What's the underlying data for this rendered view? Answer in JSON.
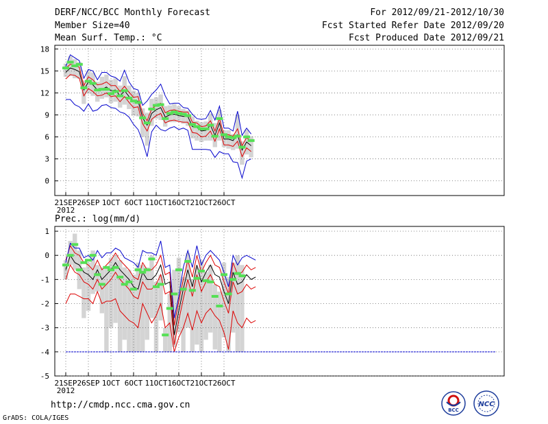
{
  "header": {
    "title": "DERF/NCC/BCC Monthly Forecast",
    "member_size": "Member Size=40",
    "variable": "Mean Surf. Temp.: °C",
    "period": "For 2012/09/21-2012/10/30",
    "started": "Fcst Started Refer Date 2012/09/20",
    "produced": "Fcst Produced Date 2012/09/21"
  },
  "footer": {
    "url": "http://cmdp.ncc.cma.gov.cn",
    "grads": "GrADS: COLA/IGES",
    "logo_left_text": "BCC",
    "logo_right_text": "NCC"
  },
  "colors": {
    "box": "#d4d4d4",
    "mean": "#000000",
    "band": "#dd0000",
    "envelope": "#0000cc",
    "obs": "#55e055",
    "axis": "#000000",
    "grid": "#666666"
  },
  "chart_data": [
    {
      "type": "line",
      "title": "Mean Surf. Temp.: °C",
      "ylabel": "°C",
      "ylim": [
        -2,
        18.5
      ],
      "yticks": [
        0,
        3,
        6,
        9,
        12,
        15,
        18
      ],
      "x_tick_labels": [
        "21SEP",
        "26SEP",
        "1OCT",
        "6OCT",
        "11OCT",
        "16OCT",
        "21OCT",
        "26OCT"
      ],
      "x_tick_days": [
        0,
        5,
        10,
        15,
        20,
        25,
        30,
        35
      ],
      "year_label": "2012",
      "days": 39,
      "series": [
        {
          "name": "ensemble-mean",
          "values": [
            14.8,
            15.4,
            15.2,
            14.9,
            12.4,
            13.5,
            13.1,
            12.4,
            12.5,
            12.8,
            12.3,
            12.4,
            11.6,
            12.3,
            11.5,
            10.8,
            10.9,
            8.6,
            7.6,
            9.2,
            9.7,
            10.0,
            8.7,
            9.0,
            9.1,
            8.9,
            8.8,
            8.8,
            7.4,
            7.3,
            6.8,
            6.9,
            7.6,
            6.2,
            7.9,
            5.7,
            5.7,
            5.5,
            6.3,
            4.2,
            5.3,
            4.8
          ]
        },
        {
          "name": "upper-band",
          "values": [
            15.4,
            15.9,
            15.8,
            15.5,
            13.0,
            14.2,
            13.8,
            13.1,
            13.2,
            13.5,
            13.0,
            13.0,
            12.2,
            12.9,
            12.1,
            11.4,
            11.5,
            9.2,
            8.2,
            9.8,
            10.3,
            10.6,
            9.3,
            9.6,
            9.7,
            9.5,
            9.4,
            9.4,
            8.0,
            7.9,
            7.4,
            7.5,
            8.2,
            6.8,
            8.5,
            6.3,
            6.3,
            6.1,
            7.1,
            4.8,
            5.9,
            5.4
          ]
        },
        {
          "name": "lower-band",
          "values": [
            13.9,
            14.5,
            14.4,
            14.0,
            11.6,
            12.6,
            12.2,
            11.6,
            11.7,
            12.0,
            11.5,
            11.6,
            10.8,
            11.5,
            10.7,
            10.0,
            10.1,
            7.8,
            6.8,
            8.4,
            8.9,
            9.2,
            7.9,
            8.2,
            8.3,
            8.1,
            8.0,
            8.0,
            6.6,
            6.5,
            6.0,
            6.1,
            6.8,
            5.4,
            7.1,
            4.9,
            4.9,
            4.7,
            5.4,
            3.3,
            4.5,
            4.0
          ]
        },
        {
          "name": "max-envelope",
          "values": [
            15.6,
            17.2,
            16.8,
            16.4,
            14.0,
            15.2,
            15.0,
            13.8,
            14.8,
            14.8,
            14.3,
            14.1,
            13.6,
            15.1,
            13.5,
            12.6,
            12.4,
            10.3,
            10.9,
            11.8,
            12.4,
            13.2,
            11.6,
            10.5,
            10.6,
            10.6,
            10.0,
            9.9,
            9.1,
            8.5,
            8.4,
            8.5,
            9.6,
            8.3,
            10.2,
            7.2,
            7.2,
            6.8,
            9.5,
            6.2,
            7.2,
            6.4
          ]
        },
        {
          "name": "min-envelope",
          "values": [
            11.1,
            11.1,
            10.4,
            10.1,
            9.5,
            10.5,
            9.5,
            9.7,
            10.3,
            10.4,
            10.0,
            9.9,
            9.4,
            9.2,
            8.7,
            7.7,
            7.0,
            5.4,
            3.3,
            6.7,
            7.6,
            7.0,
            6.8,
            7.2,
            7.4,
            7.0,
            7.2,
            6.9,
            4.3,
            4.3,
            4.3,
            4.3,
            4.2,
            3.2,
            4.0,
            3.7,
            3.7,
            2.6,
            2.5,
            0.4,
            2.7,
            3.0
          ]
        },
        {
          "name": "observed",
          "values": [
            15.4,
            16.2,
            15.7,
            15.9,
            12.7,
            13.6,
            13.3,
            12.4,
            12.5,
            12.5,
            11.9,
            12.2,
            11.6,
            12.3,
            11.3,
            10.9,
            10.7,
            8.6,
            7.9,
            9.8,
            10.3,
            10.4,
            8.5,
            9.2,
            9.4,
            9.2,
            9.1,
            8.9,
            7.7,
            7.4,
            7.1,
            7.1,
            7.6,
            6.1,
            8.5,
            6.3,
            6.0,
            5.9,
            6.1,
            4.6,
            6.0,
            5.5
          ]
        }
      ],
      "box_ranges": [
        [
          14.2,
          16.0
        ],
        [
          14.3,
          17.0
        ],
        [
          14.0,
          16.6
        ],
        [
          13.9,
          16.2
        ],
        [
          10.5,
          13.7
        ],
        [
          11.9,
          15.0
        ],
        [
          11.6,
          14.8
        ],
        [
          10.8,
          13.5
        ],
        [
          11.2,
          14.2
        ],
        [
          11.4,
          14.5
        ],
        [
          10.6,
          13.8
        ],
        [
          10.8,
          14.0
        ],
        [
          10.0,
          13.0
        ],
        [
          10.4,
          14.3
        ],
        [
          9.8,
          13.0
        ],
        [
          8.9,
          12.3
        ],
        [
          8.8,
          12.0
        ],
        [
          6.0,
          9.9
        ],
        [
          4.8,
          9.3
        ],
        [
          7.5,
          11.2
        ],
        [
          8.5,
          11.4
        ],
        [
          8.3,
          11.8
        ],
        [
          7.4,
          10.2
        ],
        [
          8.0,
          10.3
        ],
        [
          8.0,
          10.5
        ],
        [
          8.1,
          10.2
        ],
        [
          7.8,
          9.8
        ],
        [
          7.5,
          9.6
        ],
        [
          5.8,
          8.8
        ],
        [
          5.5,
          8.2
        ],
        [
          5.3,
          8.0
        ],
        [
          5.5,
          8.1
        ],
        [
          5.5,
          9.2
        ],
        [
          4.6,
          7.9
        ],
        [
          5.5,
          9.7
        ],
        [
          4.6,
          6.9
        ],
        [
          4.4,
          6.9
        ],
        [
          4.2,
          6.4
        ],
        [
          4.4,
          9.0
        ],
        [
          2.2,
          5.4
        ],
        [
          3.6,
          7.0
        ],
        [
          3.2,
          6.1
        ]
      ]
    },
    {
      "type": "line",
      "title": "Prec.: log(mm/d)",
      "ylabel": "log(mm/d)",
      "ylim": [
        -5,
        1.2
      ],
      "yticks": [
        -5,
        -4,
        -3,
        -2,
        -1,
        0,
        1
      ],
      "x_tick_labels": [
        "21SEP",
        "26SEP",
        "1OCT",
        "6OCT",
        "11OCT",
        "16OCT",
        "21OCT",
        "26OCT"
      ],
      "x_tick_days": [
        0,
        5,
        10,
        15,
        20,
        25,
        30,
        35
      ],
      "year_label": "2012",
      "days": 39,
      "series": [
        {
          "name": "ensemble-mean",
          "values": [
            -0.6,
            0.0,
            -0.3,
            -0.4,
            -0.7,
            -0.8,
            -1.0,
            -0.6,
            -1.0,
            -0.8,
            -0.6,
            -0.3,
            -0.6,
            -0.8,
            -1.0,
            -1.3,
            -1.4,
            -0.7,
            -1.0,
            -1.0,
            -0.8,
            -0.4,
            -1.2,
            -1.1,
            -3.3,
            -2.3,
            -1.4,
            -0.6,
            -1.3,
            -0.4,
            -1.1,
            -0.7,
            -0.4,
            -0.8,
            -0.9,
            -1.5,
            -2.0,
            -0.7,
            -1.2,
            -1.1,
            -0.8,
            -1.0,
            -0.9
          ]
        },
        {
          "name": "upper-band",
          "values": [
            -0.2,
            0.4,
            0.1,
            0.0,
            -0.3,
            -0.4,
            -0.6,
            -0.2,
            -0.6,
            -0.4,
            -0.2,
            0.1,
            -0.2,
            -0.4,
            -0.6,
            -0.9,
            -1.0,
            -0.3,
            -0.6,
            -0.6,
            -0.4,
            0.0,
            -0.8,
            -0.7,
            -2.9,
            -1.9,
            -1.0,
            -0.2,
            -0.9,
            0.0,
            -0.7,
            -0.3,
            0.0,
            -0.4,
            -0.5,
            -1.1,
            -1.6,
            -0.3,
            -0.8,
            -0.7,
            -0.4,
            -0.6,
            -0.5
          ]
        },
        {
          "name": "lower-band",
          "values": [
            -1.0,
            -0.4,
            -0.7,
            -0.8,
            -1.1,
            -1.2,
            -1.4,
            -1.0,
            -1.4,
            -1.2,
            -1.0,
            -0.7,
            -1.0,
            -1.2,
            -1.4,
            -1.7,
            -1.8,
            -1.1,
            -1.4,
            -1.4,
            -1.2,
            -0.8,
            -1.6,
            -1.5,
            -3.7,
            -2.7,
            -1.8,
            -1.0,
            -1.7,
            -0.8,
            -1.5,
            -1.1,
            -0.8,
            -1.2,
            -1.3,
            -1.9,
            -2.4,
            -1.1,
            -1.6,
            -1.5,
            -1.2,
            -1.4,
            -1.3
          ]
        },
        {
          "name": "upper-line",
          "values": [
            -0.3,
            0.5,
            0.3,
            0.3,
            -0.1,
            0.0,
            -0.2,
            0.2,
            -0.1,
            0.1,
            0.1,
            0.3,
            0.2,
            -0.1,
            -0.2,
            -0.3,
            -0.5,
            0.2,
            0.1,
            0.1,
            0.0,
            0.6,
            -0.5,
            -0.4,
            -2.6,
            -1.7,
            -0.5,
            0.2,
            -0.5,
            0.4,
            -0.4,
            0.0,
            0.2,
            0.0,
            -0.2,
            -0.7,
            -1.3,
            0.0,
            -0.4,
            -0.1,
            0.0,
            -0.1,
            -0.2
          ]
        },
        {
          "name": "lower-line",
          "values": [
            -2.0,
            -1.6,
            -1.6,
            -1.7,
            -1.8,
            -1.8,
            -2.0,
            -1.5,
            -2.0,
            -1.9,
            -1.9,
            -1.8,
            -2.3,
            -2.5,
            -2.7,
            -2.8,
            -3.0,
            -2.0,
            -2.4,
            -2.8,
            -2.5,
            -2.0,
            -3.0,
            -2.8,
            -4.0,
            -3.4,
            -3.0,
            -2.4,
            -3.1,
            -2.3,
            -2.8,
            -2.4,
            -2.2,
            -2.5,
            -2.7,
            -3.2,
            -3.9,
            -2.3,
            -2.8,
            -3.0,
            -2.6,
            -2.8,
            -2.7
          ]
        },
        {
          "name": "observed",
          "values": [
            -0.4,
            0.0,
            0.45,
            -0.6,
            -0.3,
            -0.2,
            0.0,
            -0.8,
            -1.2,
            -0.5,
            -0.6,
            -0.5,
            -0.9,
            -1.2,
            -1.1,
            -1.4,
            -0.6,
            -0.7,
            -0.6,
            -0.15,
            -1.3,
            -1.2,
            -3.3,
            -2.2,
            -1.6,
            -0.6,
            -1.4,
            -0.25,
            -1.45,
            -0.95,
            -0.65,
            -1.05,
            -1.1,
            -1.7,
            -2.1,
            -0.8,
            -1.6,
            -1.0,
            -0.75,
            -0.85
          ]
        }
      ],
      "min_envelope": -4,
      "box_ranges": [
        [
          -1.0,
          -0.2
        ],
        [
          -0.4,
          0.6
        ],
        [
          -0.6,
          0.9
        ],
        [
          -1.4,
          0.2
        ],
        [
          -2.6,
          -0.5
        ],
        [
          -2.3,
          -0.3
        ],
        [
          -1.6,
          0.2
        ],
        [
          -1.5,
          -0.4
        ],
        [
          -2.4,
          -0.5
        ],
        [
          -4.0,
          -0.5
        ],
        [
          -3.0,
          -0.1
        ],
        [
          -2.8,
          0.0
        ],
        [
          -4.0,
          -0.2
        ],
        [
          -3.5,
          -0.5
        ],
        [
          -4.0,
          -0.6
        ],
        [
          -4.0,
          -0.8
        ],
        [
          -4.0,
          -0.3
        ],
        [
          -4.0,
          -0.4
        ],
        [
          -3.5,
          -0.5
        ],
        [
          -2.6,
          0.0
        ],
        [
          -4.0,
          -1.1
        ],
        [
          -2.7,
          -0.8
        ],
        [
          -4.0,
          -3.0
        ],
        [
          -4.0,
          -1.6
        ],
        [
          -3.8,
          -0.6
        ],
        [
          -3.2,
          -0.1
        ],
        [
          -4.0,
          -0.9
        ],
        [
          -3.0,
          0.1
        ],
        [
          -4.0,
          -1.0
        ],
        [
          -3.7,
          -0.5
        ],
        [
          -4.0,
          -0.2
        ],
        [
          -3.5,
          -0.7
        ],
        [
          -3.2,
          -0.4
        ],
        [
          -3.9,
          -1.2
        ],
        [
          -4.0,
          -1.5
        ],
        [
          -3.4,
          -0.3
        ],
        [
          -4.0,
          -0.9
        ],
        [
          -3.2,
          -0.3
        ],
        [
          -4.0,
          0.0
        ],
        [
          -4.0,
          -0.4
        ]
      ]
    }
  ]
}
